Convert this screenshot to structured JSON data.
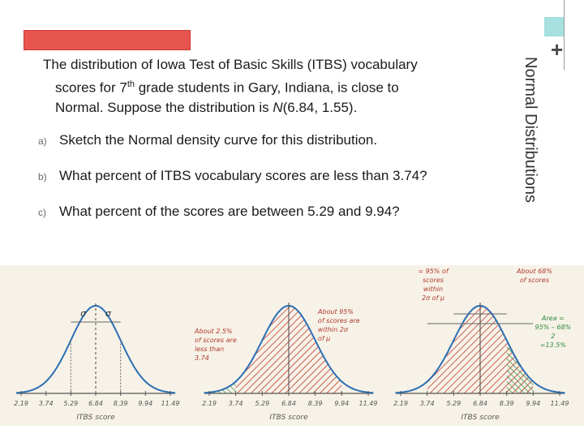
{
  "slide": {
    "side_title": "Normal Distributions",
    "plus": "+",
    "intro": {
      "line1": "The distribution of Iowa Test of Basic Skills (ITBS) vocabulary",
      "line2_a": "scores for 7",
      "line2_sup": "th",
      "line2_b": " grade students in Gary, Indiana, is close to",
      "line3_a": "Normal.  Suppose the distribution is ",
      "line3_n": "N",
      "line3_b": "(6.84, 1.55)."
    },
    "questions": [
      {
        "label": "a)",
        "text": "Sketch the Normal density curve for this distribution."
      },
      {
        "label": "b)",
        "text": "What percent of ITBS vocabulary scores are less than 3.74?"
      },
      {
        "label": "c)",
        "text": "What percent of the scores are between 5.29 and 9.94?"
      }
    ]
  },
  "figure": {
    "ticks": [
      "2.19",
      "3.74",
      "5.29",
      "6.84",
      "8.39",
      "9.94",
      "11.49"
    ],
    "xlabel": "ITBS score",
    "sigma": "σ",
    "panel2_left_note": [
      "About 2.5%",
      "of scores are",
      "less than",
      "3.74"
    ],
    "panel2_right_note": [
      "About 95%",
      "of scores are",
      "within 2σ",
      "of μ"
    ],
    "panel3_left_note": [
      "= 95% of",
      "scores",
      "within",
      "2σ of μ"
    ],
    "panel3_top_note": [
      "About 68%",
      "of scores"
    ],
    "panel3_right_note": [
      "Area =",
      "95% – 68%",
      "2",
      "=13.5%"
    ],
    "colors": {
      "shade_red": "#c0392b",
      "shade_green": "#2e8b3d",
      "curve": "#2b6fb3"
    }
  }
}
